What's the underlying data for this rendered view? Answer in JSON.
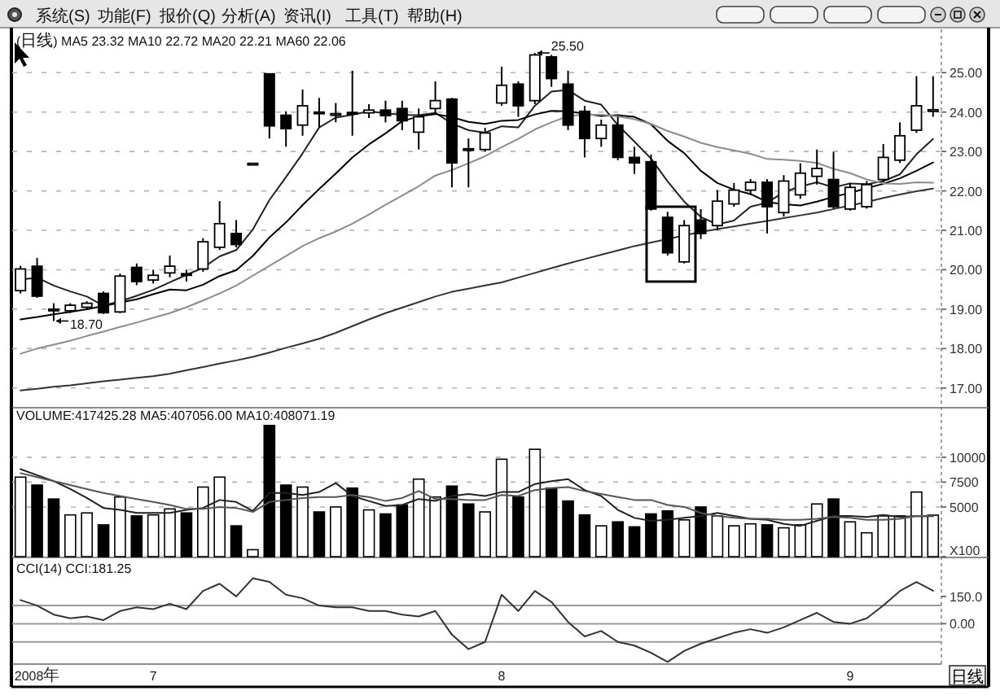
{
  "chart_data": [
    {
      "type": "candlestick",
      "title": "(日线) MA5 23.32 MA10 22.72 MA20 22.21 MA60 22.06",
      "categories": [
        null,
        null,
        null,
        null,
        null,
        null,
        null,
        null,
        null,
        null,
        null,
        null,
        null,
        null,
        null,
        null,
        null,
        null,
        null,
        null,
        null,
        null,
        null,
        null,
        null,
        null,
        null,
        null,
        null,
        null,
        null,
        null,
        null,
        null,
        null,
        null,
        null,
        null,
        null,
        null,
        null,
        null,
        null,
        null,
        null,
        null,
        null,
        null,
        null,
        null,
        null,
        null,
        null,
        null,
        null,
        null
      ],
      "ohlc": [
        [
          19.47,
          20.1,
          19.4,
          20.02
        ],
        [
          20.09,
          20.3,
          19.29,
          19.33
        ],
        [
          19.0,
          19.15,
          18.7,
          18.98
        ],
        [
          18.96,
          19.15,
          18.9,
          19.1
        ],
        [
          19.05,
          19.2,
          19.0,
          19.15
        ],
        [
          19.4,
          19.45,
          18.88,
          18.91
        ],
        [
          18.93,
          19.9,
          18.9,
          19.84
        ],
        [
          20.06,
          20.16,
          19.61,
          19.7
        ],
        [
          19.74,
          20.0,
          19.65,
          19.86
        ],
        [
          19.92,
          20.36,
          19.81,
          20.09
        ],
        [
          19.9,
          20.0,
          19.7,
          19.87
        ],
        [
          20.02,
          20.8,
          19.95,
          20.71
        ],
        [
          20.57,
          21.74,
          20.5,
          21.17
        ],
        [
          20.92,
          21.26,
          20.57,
          20.64
        ],
        [
          22.7,
          22.7,
          22.7,
          22.7
        ],
        [
          24.97,
          24.97,
          23.33,
          23.65
        ],
        [
          23.92,
          24.02,
          23.12,
          23.58
        ],
        [
          23.67,
          24.57,
          23.4,
          24.16
        ],
        [
          24.0,
          24.36,
          23.61,
          23.97
        ],
        [
          23.94,
          24.23,
          23.74,
          23.96
        ],
        [
          23.99,
          25.05,
          23.4,
          23.96
        ],
        [
          23.98,
          24.2,
          23.85,
          24.05
        ],
        [
          24.05,
          24.29,
          23.74,
          23.91
        ],
        [
          24.09,
          24.29,
          23.54,
          23.78
        ],
        [
          23.49,
          24.09,
          23.05,
          23.88
        ],
        [
          24.09,
          24.78,
          23.95,
          24.29
        ],
        [
          24.33,
          24.36,
          22.09,
          22.71
        ],
        [
          23.07,
          23.33,
          22.09,
          23.03
        ],
        [
          23.05,
          23.6,
          23.0,
          23.47
        ],
        [
          24.23,
          25.15,
          24.16,
          24.68
        ],
        [
          24.71,
          24.78,
          23.88,
          24.16
        ],
        [
          24.29,
          25.5,
          24.2,
          25.45
        ],
        [
          25.4,
          25.45,
          24.64,
          24.85
        ],
        [
          24.71,
          25.05,
          23.54,
          23.67
        ],
        [
          24.02,
          24.16,
          22.85,
          23.33
        ],
        [
          23.33,
          23.81,
          23.12,
          23.67
        ],
        [
          23.67,
          23.88,
          22.78,
          22.85
        ],
        [
          22.85,
          23.12,
          22.43,
          22.71
        ],
        [
          22.74,
          22.92,
          21.5,
          21.54
        ],
        [
          21.33,
          21.47,
          20.36,
          20.43
        ],
        [
          20.2,
          21.26,
          20.16,
          21.12
        ],
        [
          21.26,
          21.54,
          20.78,
          20.92
        ],
        [
          21.12,
          22.02,
          21.0,
          21.74
        ],
        [
          21.67,
          22.2,
          21.6,
          22.02
        ],
        [
          22.02,
          22.3,
          21.9,
          22.22
        ],
        [
          22.22,
          22.3,
          20.92,
          21.6
        ],
        [
          21.45,
          22.4,
          21.35,
          22.25
        ],
        [
          21.9,
          22.7,
          21.8,
          22.45
        ],
        [
          22.37,
          23.05,
          22.16,
          22.57
        ],
        [
          22.29,
          22.99,
          21.55,
          21.6
        ],
        [
          21.54,
          22.2,
          21.5,
          22.09
        ],
        [
          21.6,
          22.25,
          21.55,
          22.16
        ],
        [
          22.29,
          23.19,
          22.22,
          22.85
        ],
        [
          22.78,
          23.74,
          22.71,
          23.4
        ],
        [
          23.54,
          24.91,
          23.47,
          24.16
        ],
        [
          24.03,
          24.91,
          23.88,
          24.06
        ]
      ],
      "series": [
        {
          "type": "line",
          "color": "#222222",
          "values": [
            19.75,
            19.8,
            19.6,
            19.45,
            19.32,
            19.09,
            19.2,
            19.34,
            19.49,
            19.68,
            19.87,
            20.05,
            20.34,
            20.5,
            21.02,
            21.77,
            22.35,
            22.95,
            23.61,
            23.86,
            23.93,
            24.02,
            23.97,
            23.93,
            23.92,
            23.98,
            23.71,
            23.54,
            23.48,
            23.64,
            23.61,
            24.16,
            24.52,
            24.56,
            24.29,
            24.19,
            23.67,
            23.25,
            22.82,
            22.24,
            21.73,
            21.34,
            21.15,
            21.25,
            21.6,
            21.7,
            21.97,
            22.11,
            22.22,
            22.09,
            22.19,
            22.17,
            22.25,
            22.42,
            22.93,
            23.32
          ]
        },
        {
          "type": "line",
          "color": "#000000",
          "values": [
            18.74,
            18.8,
            18.87,
            18.93,
            19.0,
            19.08,
            19.17,
            19.25,
            19.38,
            19.5,
            19.48,
            19.62,
            19.84,
            19.99,
            20.35,
            20.82,
            21.2,
            21.64,
            22.05,
            22.44,
            22.85,
            23.18,
            23.46,
            23.77,
            23.89,
            23.95,
            23.87,
            23.75,
            23.7,
            23.78,
            23.8,
            23.94,
            24.03,
            24.02,
            23.96,
            23.9,
            23.92,
            23.88,
            23.69,
            23.27,
            22.96,
            22.51,
            22.2,
            22.03,
            21.92,
            21.72,
            21.66,
            21.63,
            21.73,
            21.85,
            21.95,
            22.07,
            22.18,
            22.32,
            22.51,
            22.72
          ]
        },
        {
          "type": "line",
          "color": "#8c8c8c",
          "values": [
            17.87,
            18.0,
            18.1,
            18.2,
            18.32,
            18.43,
            18.55,
            18.66,
            18.78,
            18.9,
            19.05,
            19.22,
            19.4,
            19.6,
            19.85,
            20.1,
            20.35,
            20.6,
            20.8,
            20.97,
            21.17,
            21.4,
            21.65,
            21.88,
            22.12,
            22.39,
            22.53,
            22.7,
            22.88,
            23.11,
            23.32,
            23.56,
            23.74,
            23.9,
            23.93,
            23.93,
            23.89,
            23.82,
            23.7,
            23.52,
            23.38,
            23.22,
            23.11,
            23.03,
            22.94,
            22.81,
            22.79,
            22.76,
            22.71,
            22.56,
            22.45,
            22.29,
            22.19,
            22.18,
            22.22,
            22.21
          ]
        },
        {
          "type": "line",
          "color": "#333333",
          "values": [
            16.94,
            16.98,
            17.03,
            17.07,
            17.12,
            17.17,
            17.21,
            17.26,
            17.3,
            17.36,
            17.45,
            17.53,
            17.62,
            17.7,
            17.79,
            17.9,
            18.02,
            18.13,
            18.25,
            18.4,
            18.57,
            18.74,
            18.9,
            19.04,
            19.18,
            19.32,
            19.44,
            19.52,
            19.6,
            19.68,
            19.8,
            19.92,
            20.04,
            20.16,
            20.27,
            20.38,
            20.49,
            20.6,
            20.69,
            20.78,
            20.87,
            20.96,
            21.03,
            21.1,
            21.17,
            21.24,
            21.31,
            21.38,
            21.45,
            21.54,
            21.63,
            21.72,
            21.82,
            21.91,
            21.99,
            22.06
          ]
        }
      ],
      "ylim": [
        16.5,
        26.1
      ],
      "yticks": [
        {
          "value": 17,
          "label": "17.00"
        },
        {
          "value": 18,
          "label": "18.00"
        },
        {
          "value": 19,
          "label": "19.00"
        },
        {
          "value": 20,
          "label": "20.00"
        },
        {
          "value": 21,
          "label": "21.00"
        },
        {
          "value": 22,
          "label": "22.00"
        },
        {
          "value": 23,
          "label": "23.00"
        },
        {
          "value": 24,
          "label": "24.00"
        },
        {
          "value": 25,
          "label": "25.00"
        }
      ],
      "grid": "y",
      "annotations": [
        "系统(S)",
        "功能(F)",
        "报价(Q)",
        "分析(A)",
        "资讯(I)",
        "工具(T)",
        "帮助(H)",
        "18.70",
        "25.50"
      ]
    },
    {
      "type": "bar",
      "title": "VOLUME:417425.28 MA5:407056.00 MA10:408071.19",
      "categories": [
        null,
        null,
        null,
        null,
        null,
        null,
        null,
        null,
        null,
        null,
        null,
        null,
        null,
        null,
        null,
        null,
        null,
        null,
        null,
        null,
        null,
        null,
        null,
        null,
        null,
        null,
        null,
        null,
        null,
        null,
        null,
        null,
        null,
        null,
        null,
        null,
        null,
        null,
        null,
        null,
        null,
        null,
        null,
        null,
        null,
        null,
        null,
        null,
        null,
        null,
        null,
        null,
        null,
        null,
        null,
        null
      ],
      "series": [
        {
          "values": [
            8000,
            7200,
            5800,
            4200,
            4400,
            3200,
            6000,
            4100,
            4200,
            4800,
            4400,
            7000,
            8000,
            3100,
            700,
            13200,
            7200,
            7000,
            4500,
            5000,
            6900,
            4700,
            4300,
            5200,
            7800,
            6000,
            7100,
            5300,
            4500,
            9800,
            6000,
            10800,
            6900,
            5600,
            4200,
            3100,
            3500,
            3000,
            4300,
            4600,
            3700,
            5000,
            4100,
            3100,
            3300,
            3200,
            2900,
            3200,
            5300,
            5800,
            3500,
            2400,
            4100,
            4100,
            6500,
            4174.25
          ],
          "colors": [
            "#ffffff",
            "#000000",
            "#000000",
            "#ffffff",
            "#ffffff",
            "#000000",
            "#ffffff",
            "#000000",
            "#ffffff",
            "#ffffff",
            "#000000",
            "#ffffff",
            "#ffffff",
            "#000000",
            "#ffffff",
            "#000000",
            "#000000",
            "#ffffff",
            "#000000",
            "#ffffff",
            "#000000",
            "#ffffff",
            "#000000",
            "#000000",
            "#ffffff",
            "#ffffff",
            "#000000",
            "#000000",
            "#ffffff",
            "#ffffff",
            "#000000",
            "#ffffff",
            "#000000",
            "#000000",
            "#000000",
            "#ffffff",
            "#000000",
            "#000000",
            "#000000",
            "#000000",
            "#ffffff",
            "#000000",
            "#ffffff",
            "#ffffff",
            "#ffffff",
            "#000000",
            "#ffffff",
            "#ffffff",
            "#ffffff",
            "#000000",
            "#ffffff",
            "#ffffff",
            "#ffffff",
            "#ffffff",
            "#ffffff",
            "#ffffff"
          ]
        },
        {
          "type": "line",
          "color": "#222222",
          "values": [
            8800,
            8200,
            7600,
            6800,
            5900,
            4900,
            4700,
            4400,
            4400,
            4400,
            4700,
            4900,
            5700,
            5500,
            4600,
            6400,
            6400,
            6200,
            6500,
            7400,
            6100,
            5600,
            5100,
            5200,
            5800,
            5600,
            6100,
            6300,
            6100,
            6500,
            6500,
            7300,
            7600,
            7800,
            6700,
            6100,
            4700,
            3900,
            3600,
            3700,
            3900,
            4100,
            4400,
            4100,
            3800,
            3700,
            3300,
            3100,
            3600,
            4100,
            4100,
            4000,
            4200,
            4000,
            4100,
            4070.56
          ]
        },
        {
          "type": "line",
          "color": "#555555",
          "values": [
            8400,
            8000,
            7600,
            7200,
            6800,
            6400,
            6100,
            5800,
            5500,
            5200,
            4800,
            4800,
            5000,
            4900,
            4500,
            5500,
            5700,
            5900,
            6000,
            6000,
            6200,
            6000,
            5600,
            5900,
            6600,
            5800,
            5800,
            5700,
            5700,
            6200,
            6100,
            6700,
            6900,
            7000,
            6600,
            6300,
            6000,
            5700,
            5700,
            5200,
            5000,
            4400,
            4100,
            3900,
            3800,
            3800,
            3700,
            3700,
            3800,
            4000,
            3900,
            3700,
            3700,
            3800,
            4100,
            4080.71
          ]
        }
      ],
      "ylim": [
        0,
        14900
      ],
      "yticks": [
        {
          "value": 0,
          "label": "X100"
        },
        5000,
        7500,
        10000
      ],
      "grid": "y"
    },
    {
      "type": "line",
      "title": "CCI(14) CCI:181.25",
      "categories": [
        null,
        "2008年",
        null,
        null,
        null,
        null,
        null,
        null,
        "7",
        null,
        null,
        null,
        null,
        null,
        null,
        null,
        null,
        null,
        null,
        null,
        null,
        null,
        null,
        null,
        null,
        null,
        null,
        null,
        null,
        "8",
        null,
        null,
        null,
        null,
        null,
        null,
        null,
        null,
        null,
        null,
        null,
        null,
        null,
        null,
        null,
        null,
        null,
        null,
        null,
        null,
        "9",
        null,
        null,
        null,
        null,
        null
      ],
      "color": "#333333",
      "values": [
        130,
        100,
        50,
        30,
        40,
        20,
        70,
        90,
        80,
        110,
        80,
        180,
        220,
        150,
        250,
        230,
        160,
        140,
        100,
        90,
        90,
        70,
        70,
        50,
        40,
        70,
        -60,
        -140,
        -100,
        160,
        70,
        180,
        120,
        10,
        -70,
        -40,
        -100,
        -120,
        -160,
        -210,
        -150,
        -110,
        -80,
        -50,
        -30,
        -50,
        -20,
        20,
        60,
        10,
        0,
        30,
        100,
        180,
        230,
        181.25
      ],
      "ylim": [
        -222,
        360
      ],
      "yticks": [
        {
          "value": 0,
          "label": "0.00"
        },
        {
          "value": 150,
          "label": "150.0"
        }
      ],
      "ref_lines": [
        {
          "axis": "y",
          "value": 100,
          "color": "#9a9a9a"
        },
        {
          "axis": "y",
          "value": 0,
          "color": "#9a9a9a"
        },
        {
          "axis": "y",
          "value": -100,
          "color": "#9a9a9a"
        }
      ],
      "annotations": [
        "日线"
      ]
    }
  ]
}
